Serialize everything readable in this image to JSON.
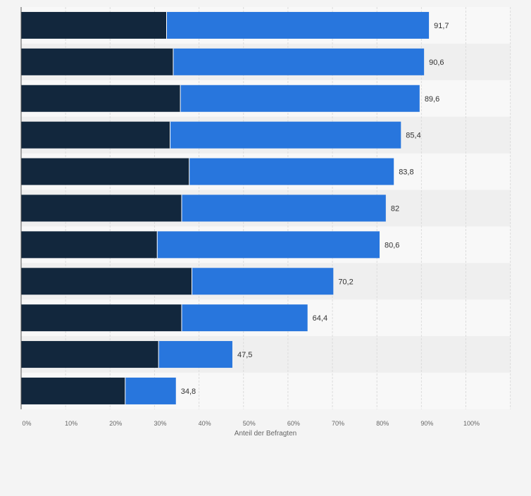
{
  "chart_data": {
    "type": "bar",
    "orientation": "horizontal",
    "stacked": true,
    "xlabel": "Anteil der Befragten",
    "xlim": [
      0,
      110
    ],
    "ticks": [
      0,
      10,
      20,
      30,
      40,
      50,
      60,
      70,
      80,
      90,
      100
    ],
    "tick_labels": [
      "0%",
      "10%",
      "20%",
      "30%",
      "40%",
      "50%",
      "60%",
      "70%",
      "80%",
      "90%",
      "100%"
    ],
    "grid": true,
    "colors": {
      "series_dark": "#12273d",
      "series_light": "#2876dd",
      "grid": "#dcdcdc",
      "band_alt": "#efefef",
      "plot_bg": "#f8f8f8",
      "page_bg": "#f4f4f4",
      "text": "#333333",
      "axis_text": "#666666"
    },
    "series": [
      {
        "values": [
          32.7,
          34.2,
          35.8,
          33.5,
          37.8,
          36.1,
          30.6,
          38.4,
          36.1,
          30.9,
          23.4
        ]
      },
      {
        "values": [
          59.0,
          56.4,
          53.8,
          51.9,
          46.0,
          45.9,
          50.0,
          31.8,
          28.3,
          16.6,
          11.4
        ]
      }
    ],
    "totals": [
      91.7,
      90.6,
      89.6,
      85.4,
      83.8,
      82,
      80.6,
      70.2,
      64.4,
      47.5,
      34.8
    ],
    "total_labels": [
      "91,7",
      "90,6",
      "89,6",
      "85,4",
      "83,8",
      "82",
      "80,6",
      "70,2",
      "64,4",
      "47,5",
      "34,8"
    ]
  }
}
